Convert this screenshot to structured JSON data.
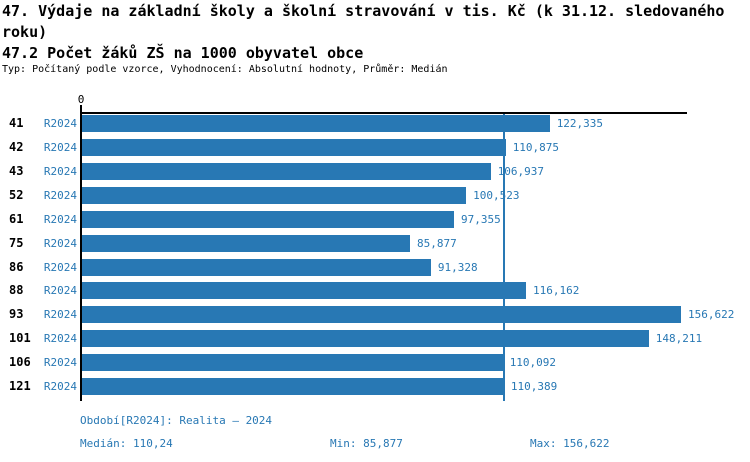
{
  "title": "47. Výdaje na základní školy a školní stravování v tis. Kč (k 31.12. sledovaného roku)",
  "subtitle": "47.2 Počet žáků ZŠ na 1000 obyvatel obce",
  "meta_line": "Typ: Počítaný podle vzorce, Vyhodnocení: Absolutní hodnoty, Průměr: Medián",
  "colors": {
    "accent": "#2878b4",
    "axis": "#000000"
  },
  "chart_data": {
    "type": "bar",
    "orientation": "horizontal",
    "title": "47.2 Počet žáků ZŠ na 1000 obyvatel obce",
    "origin_tick_label": "0",
    "series_label": "R2024",
    "categories": [
      "41",
      "42",
      "43",
      "52",
      "61",
      "75",
      "86",
      "88",
      "93",
      "101",
      "106",
      "121"
    ],
    "values": [
      122.335,
      110.875,
      106.937,
      100.523,
      97.355,
      85.877,
      91.328,
      116.162,
      156.622,
      148.211,
      110.092,
      110.389
    ],
    "value_labels": [
      "122,335",
      "110,875",
      "106,937",
      "100,523",
      "97,355",
      "85,877",
      "91,328",
      "116,162",
      "156,622",
      "148,211",
      "110,092",
      "110,389"
    ],
    "xlim": [
      0,
      156.622
    ],
    "median_line": 110.24,
    "grid": false,
    "legend": "none"
  },
  "footer": {
    "period": "Období[R2024]: Realita – 2024",
    "median": "Medián: 110,24",
    "min": "Min: 85,877",
    "max": "Max: 156,622"
  }
}
